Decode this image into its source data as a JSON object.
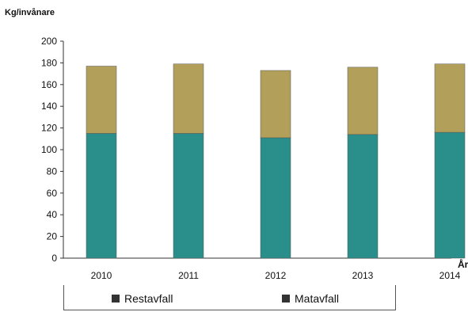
{
  "chart_data": {
    "type": "bar",
    "stacked": true,
    "ylabel": "Kg/invånare",
    "xlabel": "År",
    "categories": [
      "2010",
      "2011",
      "2012",
      "2013",
      "2014"
    ],
    "ylim": [
      0,
      200
    ],
    "yticks": [
      0,
      20,
      40,
      60,
      80,
      100,
      120,
      140,
      160,
      180,
      200
    ],
    "grid": false,
    "legend_position": "bottom",
    "series": [
      {
        "name": "Restavfall",
        "color": "#2a8f8a",
        "values": [
          115,
          115,
          111,
          114,
          116
        ]
      },
      {
        "name": "Matavfall",
        "color": "#b2a05a",
        "values": [
          62,
          64,
          62,
          62,
          63
        ]
      }
    ]
  }
}
